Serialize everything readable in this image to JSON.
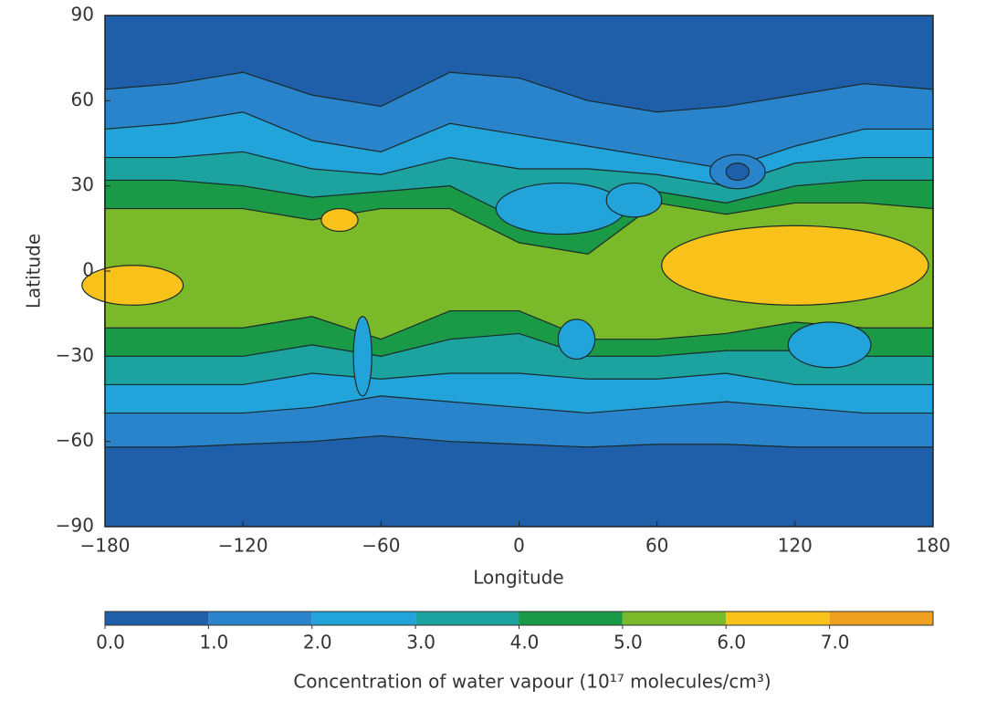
{
  "chart_data": {
    "type": "contour-map",
    "xlabel": "Longitude",
    "ylabel": "Latitude",
    "xlim": [
      -180,
      180
    ],
    "ylim": [
      -90,
      90
    ],
    "xticks": [
      {
        "value": -180,
        "label": "−180"
      },
      {
        "value": -120,
        "label": "−120"
      },
      {
        "value": -60,
        "label": "−60"
      },
      0,
      60,
      120,
      180
    ],
    "yticks": [
      90,
      60,
      30,
      0,
      {
        "value": -30,
        "label": "−30"
      },
      {
        "value": -60,
        "label": "−60"
      },
      {
        "value": -90,
        "label": "−90"
      }
    ],
    "colorbar": {
      "label": "Concentration of water vapour (10¹⁷ molecules/cm³)",
      "lim": [
        0,
        8
      ],
      "ticks": [
        {
          "value": 0,
          "label": "0.0"
        },
        {
          "value": 1,
          "label": "1.0"
        },
        {
          "value": 2,
          "label": "2.0"
        },
        {
          "value": 3,
          "label": "3.0"
        },
        {
          "value": 4,
          "label": "4.0"
        },
        {
          "value": 5,
          "label": "5.0"
        },
        {
          "value": 6,
          "label": "6.0"
        },
        {
          "value": 7,
          "label": "7.0"
        }
      ],
      "colors": [
        "#1f5ea8",
        "#2a84cb",
        "#22a4da",
        "#1da39f",
        "#1a9a47",
        "#7ab929",
        "#f8c21a",
        "#f0a020"
      ]
    }
  }
}
